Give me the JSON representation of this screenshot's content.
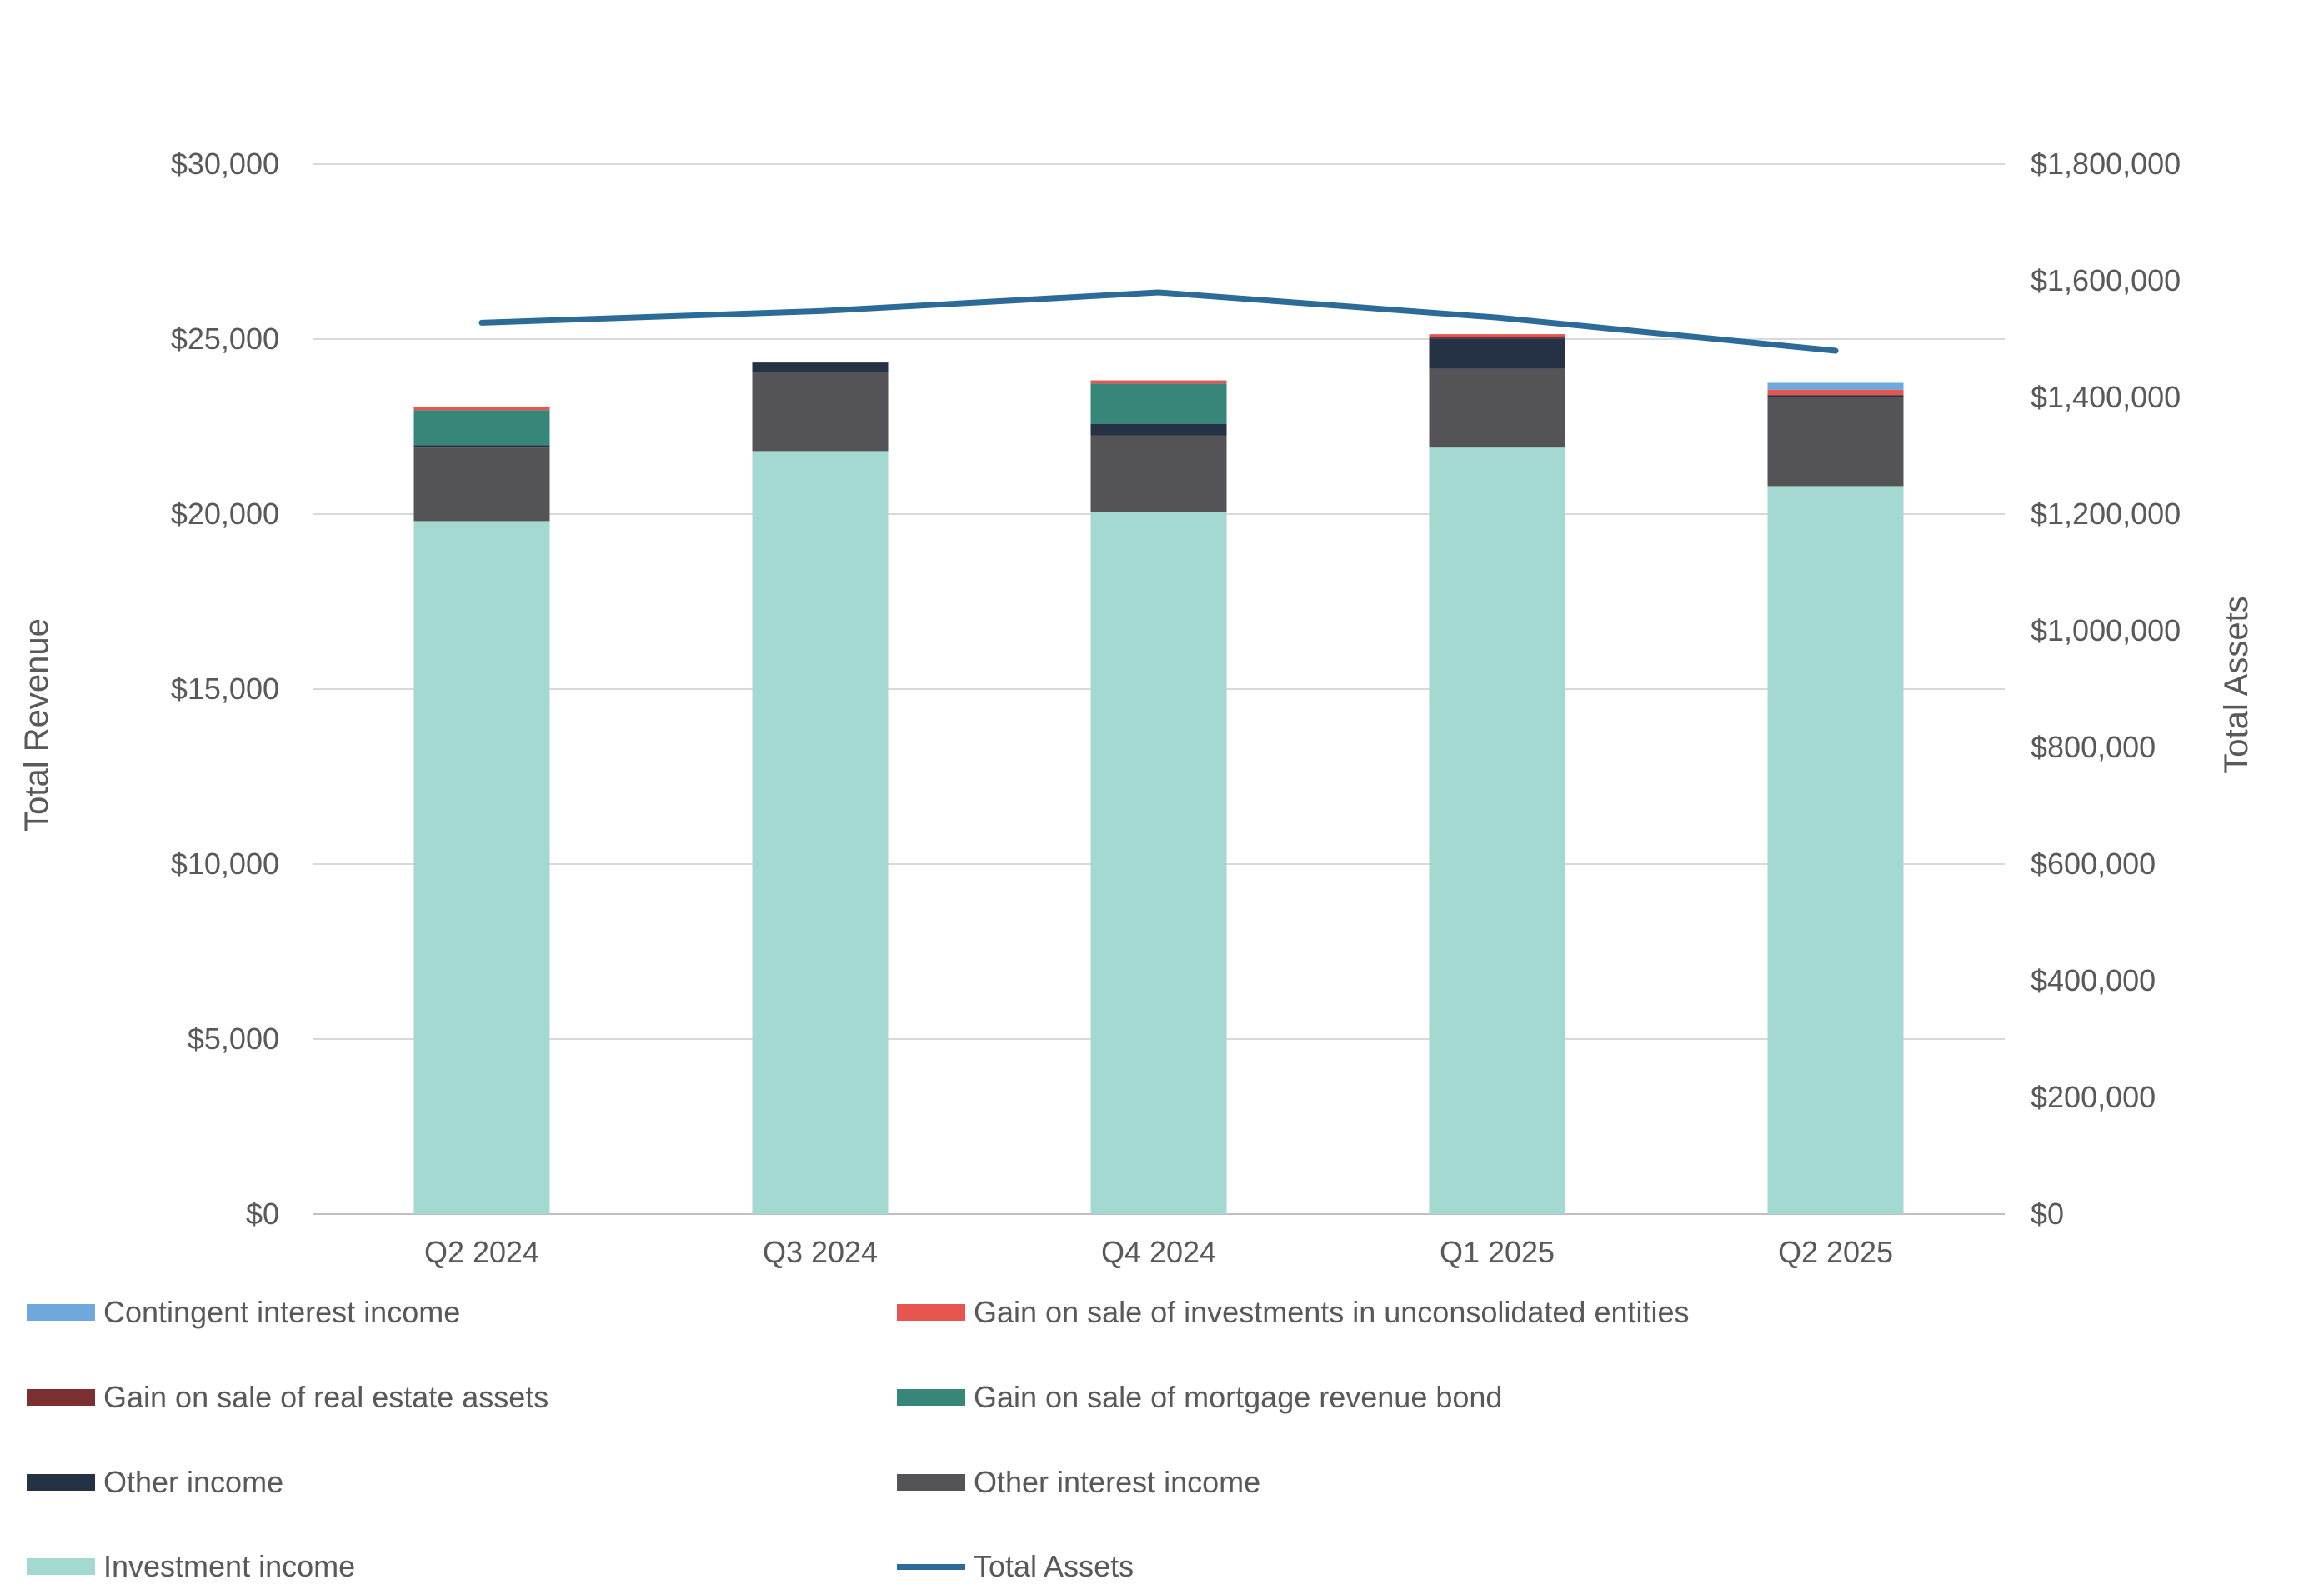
{
  "chart_data": {
    "type": "bar",
    "stacked": true,
    "categories": [
      "Q2 2024",
      "Q3 2024",
      "Q4 2024",
      "Q1 2025",
      "Q2 2025"
    ],
    "ylabel": "Total Revenue",
    "y2label": "Total Assets",
    "ylim": [
      0,
      30000
    ],
    "y2lim": [
      0,
      1800000
    ],
    "yticks": [
      "$0",
      "$5,000",
      "$10,000",
      "$15,000",
      "$20,000",
      "$25,000",
      "$30,000"
    ],
    "y2ticks": [
      "$0",
      "$200,000",
      "$400,000",
      "$600,000",
      "$800,000",
      "$1,000,000",
      "$1,200,000",
      "$1,400,000",
      "$1,600,000",
      "$1,800,000"
    ],
    "grid": true,
    "legend_position": "bottom",
    "series": [
      {
        "name": "Investment income",
        "color": "#a3d9d0",
        "values": [
          19800,
          21800,
          20050,
          21900,
          20800
        ]
      },
      {
        "name": "Other interest income",
        "color": "#545456",
        "values": [
          2100,
          2250,
          2200,
          2250,
          2550
        ]
      },
      {
        "name": "Other income",
        "color": "#253246",
        "values": [
          70,
          280,
          330,
          870,
          50
        ]
      },
      {
        "name": "Gain on sale of mortgage revenue bond",
        "color": "#36877a",
        "values": [
          1000,
          0,
          1150,
          0,
          0
        ]
      },
      {
        "name": "Gain on sale of real estate assets",
        "color": "#7b2f2f",
        "values": [
          0,
          0,
          0,
          60,
          0
        ]
      },
      {
        "name": "Gain on sale of investments in unconsolidated entities",
        "color": "#e8544e",
        "values": [
          100,
          0,
          90,
          60,
          150
        ]
      },
      {
        "name": "Contingent interest income",
        "color": "#6fa8dc",
        "values": [
          0,
          0,
          0,
          0,
          200
        ]
      }
    ],
    "line_series": {
      "name": "Total Assets",
      "color": "#2c6a97",
      "axis": "right",
      "values": [
        1528000,
        1548000,
        1580000,
        1537000,
        1480000
      ]
    }
  },
  "legend": [
    {
      "label": "Contingent interest income",
      "color": "#6fa8dc",
      "kind": "swatch"
    },
    {
      "label": "Gain on sale of investments in unconsolidated entities",
      "color": "#e8544e",
      "kind": "swatch"
    },
    {
      "label": "Gain on sale of real estate assets",
      "color": "#7b2f2f",
      "kind": "swatch"
    },
    {
      "label": "Gain on sale of mortgage revenue bond",
      "color": "#36877a",
      "kind": "swatch"
    },
    {
      "label": "Other income",
      "color": "#253246",
      "kind": "swatch"
    },
    {
      "label": "Other interest income",
      "color": "#545456",
      "kind": "swatch"
    },
    {
      "label": "Investment income",
      "color": "#a3d9d0",
      "kind": "swatch"
    },
    {
      "label": "Total Assets",
      "color": "#2c6a97",
      "kind": "line"
    }
  ]
}
